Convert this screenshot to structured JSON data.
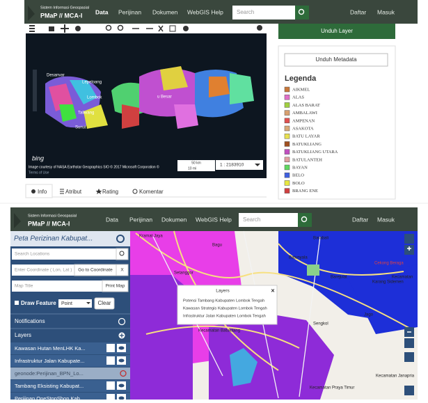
{
  "top_screen": {
    "brand": {
      "subtitle": "Sistem Informasi Geospasial",
      "title": "PMaP // MCA-I"
    },
    "nav": [
      "Data",
      "Perijinan",
      "Dokumen",
      "WebGIS Help"
    ],
    "search_placeholder": "Search",
    "nav_right": [
      "Daftar",
      "Masuk"
    ],
    "map_labels": [
      "Desanvar",
      "Lepeloang",
      "Lombok",
      "Taliwang",
      "Sunut",
      "u Besar"
    ],
    "attribution": "Image courtesy of NASA Earthstar Geographics SIO © 2017 Microsoft Corporation ©",
    "terms": "Terms of Use",
    "bing": "bing",
    "scale_km": "50 km",
    "scale_mi": "10 mi",
    "scale_ratio": "1 : 2183910",
    "tabs": [
      "Info",
      "Atribut",
      "Rating",
      "Komentar"
    ],
    "download_layer": "Unduh Layer",
    "download_metadata": "Unduh Metadata",
    "legend": {
      "title": "Legenda",
      "items": [
        {
          "label": "AIKMEL",
          "color": "#c8783a"
        },
        {
          "label": "ALAS",
          "color": "#e070c8"
        },
        {
          "label": "ALAS BARAT",
          "color": "#a0d040"
        },
        {
          "label": "AMBALAWI",
          "color": "#d8a070"
        },
        {
          "label": "AMPENAN",
          "color": "#e05050"
        },
        {
          "label": "ASAKOTA",
          "color": "#d8a878"
        },
        {
          "label": "BATU LAYAR",
          "color": "#e8e050"
        },
        {
          "label": "BATUKLIANG",
          "color": "#a05020"
        },
        {
          "label": "BATUKLIANG UTARA",
          "color": "#c050c0"
        },
        {
          "label": "BATULANTEH",
          "color": "#e0a0a0"
        },
        {
          "label": "BAYAN",
          "color": "#60d860"
        },
        {
          "label": "BELO",
          "color": "#4060e0"
        },
        {
          "label": "BOLO",
          "color": "#e8e840"
        },
        {
          "label": "BRANG ENE",
          "color": "#d04040"
        }
      ]
    }
  },
  "bottom_screen": {
    "brand": {
      "subtitle": "Sistem Informasi Geospasial",
      "title": "PMaP // MCA-I"
    },
    "nav": [
      "Data",
      "Perijinan",
      "Dokumen",
      "WebGIS Help"
    ],
    "search_placeholder": "Search",
    "nav_right": [
      "Daftar",
      "Masuk"
    ],
    "sidebar": {
      "title": "Peta Perizinan Kabupat...",
      "search_locations": "Search Locations",
      "coordinate_placeholder": "Enter Coordinate ( Lon, Lat )",
      "go_to_coordinate": "Go to Coordinate",
      "clear_x": "X",
      "map_title": "Map Title",
      "print_map": "Print Map",
      "draw_feature": "Draw Feature",
      "draw_type": "Point",
      "clear": "Clear",
      "notifications": "Notifications",
      "layers": "Layers",
      "layer_items": [
        "Kawasan Hutan MenLHK Ka...",
        "Infrastruktur Jalan Kabupate...",
        "geonode:Perijinan_BPN_Lo...",
        "Tambang Eksisting Kabupat...",
        "Perijinan OneStopShop Kab..."
      ]
    },
    "popup": {
      "title": "Layers",
      "items": [
        "Potensi Tambang Kabupaten Lombok Tengah",
        "Kawasan Strategis Kabupaten Lombok Tengah",
        "Infrastruktur Jalan Kabupaten Lombok Tengah"
      ]
    },
    "map_labels": [
      "Kramat Jaya",
      "Bagu",
      "Setanggor",
      "Batunyala",
      "Barabali",
      "Cekong Beraga",
      "Barejulat",
      "Karang Sidemen",
      "Kecamatan Batukliang",
      "Kecamatan Janapria",
      "Kecamatan Praya Timur",
      "Kecamatan",
      "Sengkol",
      "Jago"
    ]
  }
}
